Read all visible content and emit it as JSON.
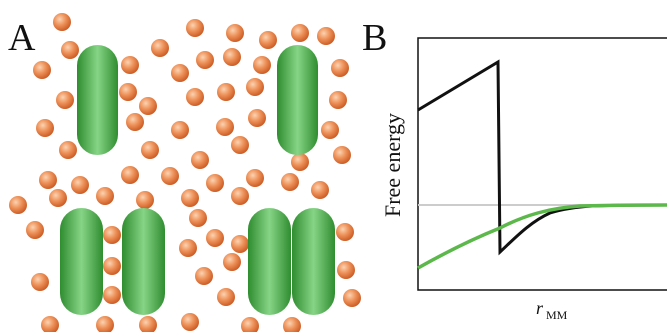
{
  "panel_a": {
    "label": "A"
  },
  "panel_b": {
    "label": "B",
    "y_label": "Free energy",
    "x_label": {
      "symbol": "r",
      "subscript": "MM"
    }
  }
}
